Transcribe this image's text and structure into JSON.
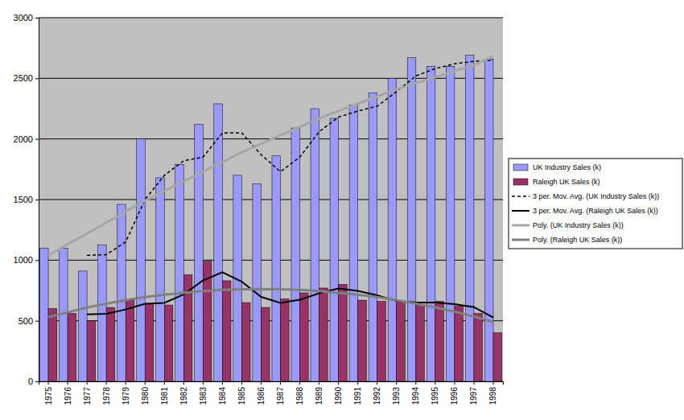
{
  "chart_data": {
    "type": "bar",
    "categories": [
      "1975",
      "1976",
      "1977",
      "1978",
      "1979",
      "1980",
      "1981",
      "1982",
      "1983",
      "1984",
      "1985",
      "1986",
      "1987",
      "1988",
      "1989",
      "1990",
      "1991",
      "1992",
      "1993",
      "1994",
      "1995",
      "1996",
      "1997",
      "1998"
    ],
    "series": [
      {
        "name": "UK Industry Sales (k)",
        "type": "bar",
        "color": "#9999ff",
        "values": [
          1100,
          1100,
          910,
          1125,
          1460,
          2000,
          1680,
          1790,
          2120,
          2290,
          1700,
          1630,
          1860,
          2090,
          2250,
          2170,
          2280,
          2380,
          2500,
          2670,
          2600,
          2600,
          2690,
          2660
        ]
      },
      {
        "name": "Raleigh UK Sales (k)",
        "type": "bar",
        "color": "#993366",
        "values": [
          600,
          560,
          500,
          610,
          670,
          640,
          630,
          880,
          990,
          830,
          650,
          610,
          680,
          730,
          770,
          800,
          670,
          660,
          660,
          630,
          660,
          620,
          560,
          400
        ]
      },
      {
        "name": "3 per. Mov. Avg. (UK Industry Sales (k))",
        "type": "line",
        "color": "#000000",
        "line_style": "dashed",
        "values": [
          null,
          null,
          1040,
          1045,
          1150,
          1500,
          1700,
          1820,
          1850,
          2050,
          2050,
          1870,
          1730,
          1850,
          2060,
          2180,
          2230,
          2270,
          2390,
          2520,
          2580,
          2620,
          2640,
          2650
        ]
      },
      {
        "name": "3 per. Mov. Avg. (Raleigh UK Sales (k))",
        "type": "line",
        "color": "#000000",
        "line_style": "solid",
        "values": [
          null,
          null,
          553,
          557,
          593,
          640,
          647,
          717,
          833,
          900,
          823,
          697,
          647,
          673,
          727,
          767,
          747,
          710,
          663,
          650,
          650,
          637,
          613,
          527
        ]
      },
      {
        "name": "Poly. (UK Industry Sales (k))",
        "type": "line",
        "color": "#a6a6a6",
        "line_style": "solid",
        "values": [
          1040,
          1130,
          1220,
          1310,
          1400,
          1490,
          1570,
          1650,
          1730,
          1810,
          1890,
          1960,
          2030,
          2100,
          2170,
          2230,
          2290,
          2350,
          2410,
          2460,
          2510,
          2560,
          2610,
          2680
        ]
      },
      {
        "name": "Poly. (Raleigh UK Sales (k))",
        "type": "line",
        "color": "#808080",
        "line_style": "solid",
        "values": [
          530,
          570,
          610,
          640,
          670,
          695,
          715,
          730,
          745,
          755,
          760,
          762,
          760,
          755,
          745,
          730,
          715,
          695,
          670,
          640,
          610,
          575,
          535,
          490
        ]
      }
    ],
    "ylim": [
      0,
      3000
    ],
    "yticks": [
      0,
      500,
      1000,
      1500,
      2000,
      2500,
      3000
    ],
    "grid": true,
    "legend": "right"
  }
}
